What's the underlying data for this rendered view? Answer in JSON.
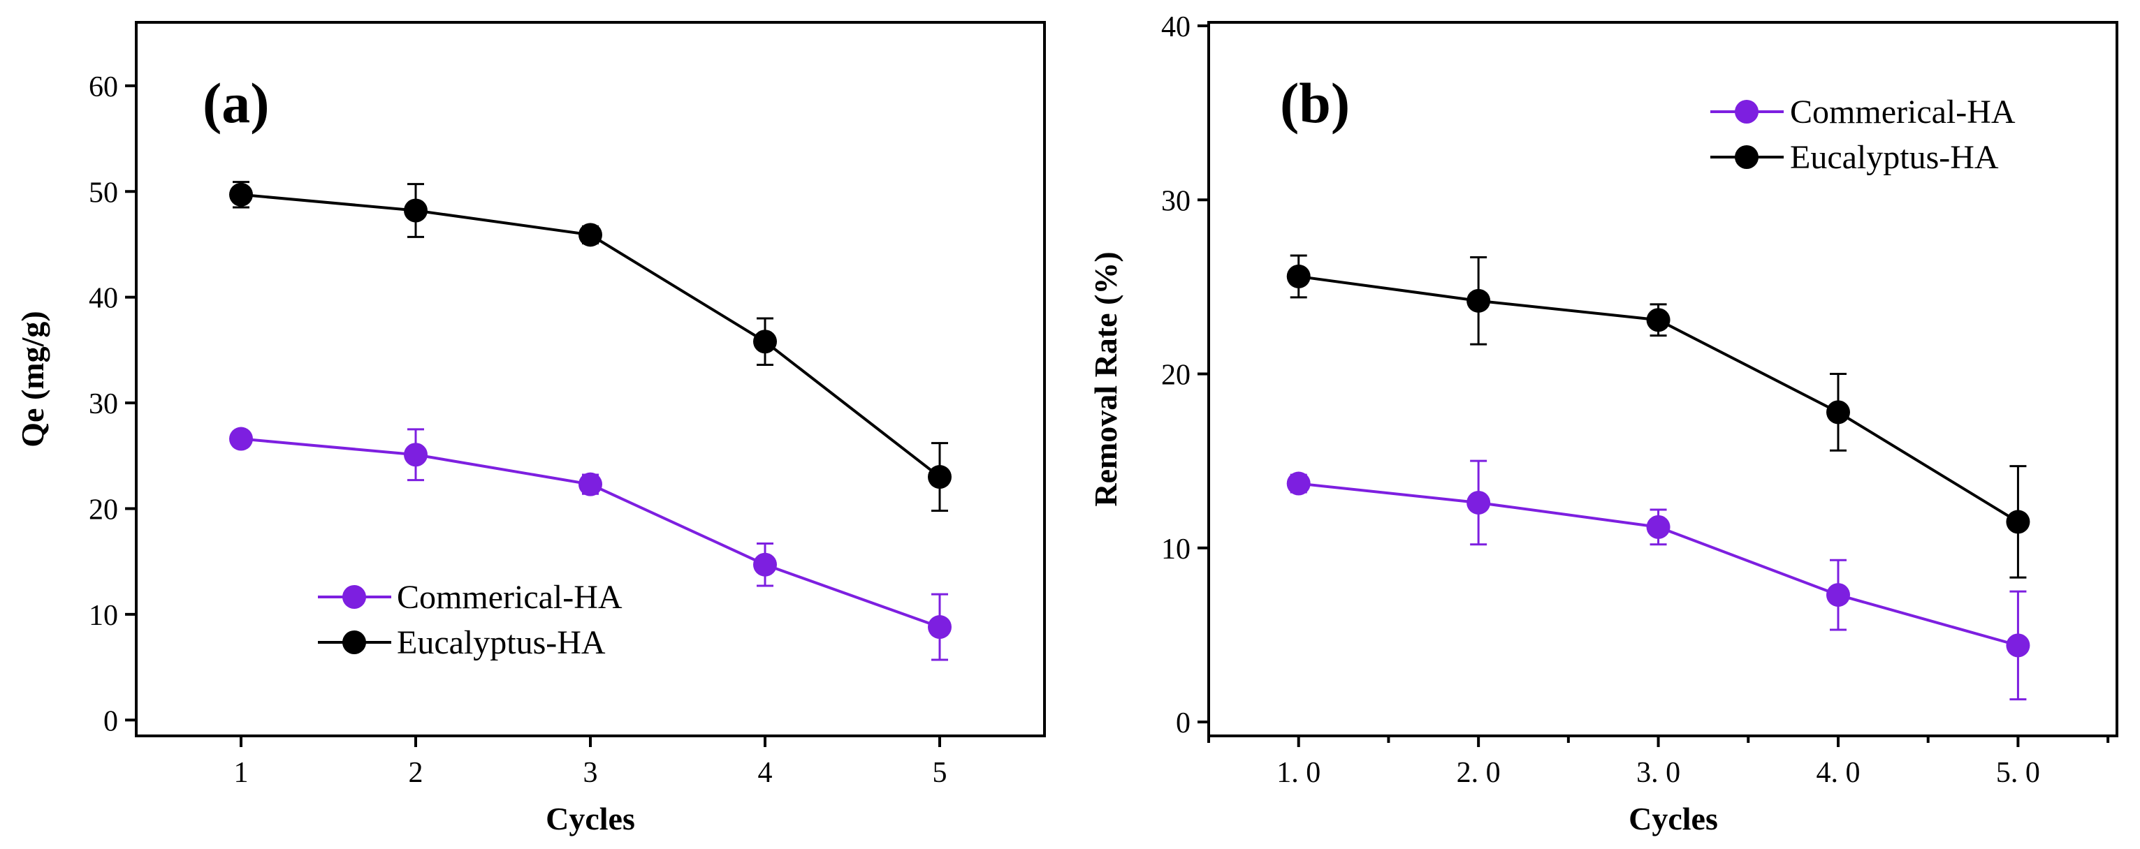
{
  "colors": {
    "commerical": "#7d1fe0",
    "eucalyptus": "#000000"
  },
  "chart_data": [
    {
      "type": "line",
      "panel_label": "(a)",
      "xlabel": "Cycles",
      "ylabel": "Qe (mg/g)",
      "xlim": [
        0.4,
        5.6
      ],
      "ylim": [
        -1.5,
        66
      ],
      "x": [
        1,
        2,
        3,
        4,
        5
      ],
      "xtick_labels": [
        "1",
        "2",
        "3",
        "4",
        "5"
      ],
      "yticks": [
        0,
        10,
        20,
        30,
        40,
        50,
        60
      ],
      "ytick_labels": [
        "0",
        "10",
        "20",
        "30",
        "40",
        "50",
        "60"
      ],
      "minor_xticks": [],
      "legend_position": "lower-left",
      "series": [
        {
          "name": "Commerical-HA",
          "color_key": "commerical",
          "values": [
            26.6,
            25.1,
            22.3,
            14.7,
            8.8
          ],
          "errors": [
            0.3,
            2.4,
            0.9,
            2.0,
            3.1
          ]
        },
        {
          "name": "Eucalyptus-HA",
          "color_key": "eucalyptus",
          "values": [
            49.7,
            48.2,
            45.9,
            35.8,
            23.0
          ],
          "errors": [
            1.2,
            2.5,
            0.8,
            2.2,
            3.2
          ]
        }
      ]
    },
    {
      "type": "line",
      "panel_label": "(b)",
      "xlabel": "Cycles",
      "ylabel": "Removal Rate (%)",
      "xlim": [
        0.5,
        5.55
      ],
      "ylim": [
        -0.8,
        40.2
      ],
      "x": [
        1,
        2,
        3,
        4,
        5
      ],
      "xtick_labels": [
        "1. 0",
        "2. 0",
        "3. 0",
        "4. 0",
        "5. 0"
      ],
      "yticks": [
        0,
        10,
        20,
        30,
        40
      ],
      "ytick_labels": [
        "0",
        "10",
        "20",
        "30",
        "40"
      ],
      "minor_xticks": [
        0.5,
        1.5,
        2.5,
        3.5,
        4.5,
        5.5
      ],
      "legend_position": "top-right",
      "series": [
        {
          "name": "Commerical-HA",
          "color_key": "commerical",
          "values": [
            13.7,
            12.6,
            11.2,
            7.3,
            4.4
          ],
          "errors": [
            0.5,
            2.4,
            1.0,
            2.0,
            3.1
          ]
        },
        {
          "name": "Eucalyptus-HA",
          "color_key": "eucalyptus",
          "values": [
            25.6,
            24.2,
            23.1,
            17.8,
            11.5
          ],
          "errors": [
            1.2,
            2.5,
            0.9,
            2.2,
            3.2
          ]
        }
      ]
    }
  ]
}
